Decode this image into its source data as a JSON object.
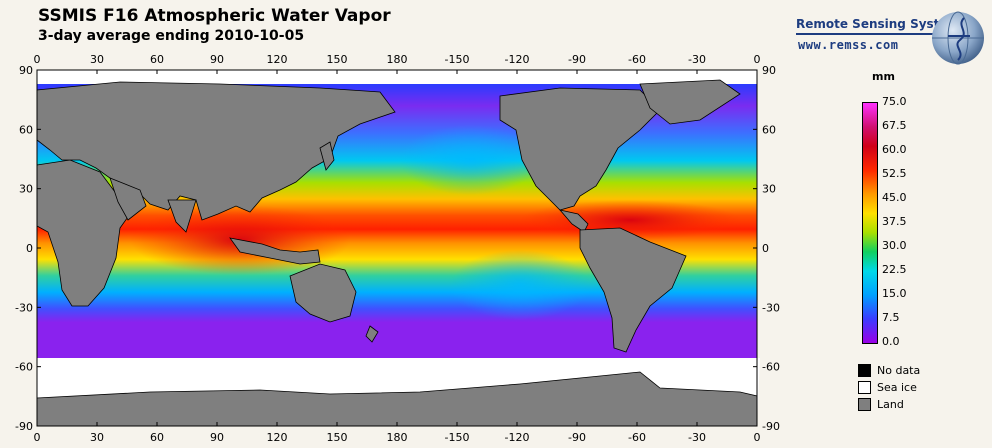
{
  "header": {
    "title": "SSMIS F16 Atmospheric Water Vapor",
    "subtitle": "3-day average ending 2010-10-05"
  },
  "branding": {
    "org": "Remote Sensing Systems",
    "url": "www.remss.com"
  },
  "axes": {
    "top_lon": [
      "0",
      "30",
      "60",
      "90",
      "120",
      "150",
      "180",
      "-150",
      "-120",
      "-90",
      "-60",
      "-30",
      "0"
    ],
    "bottom_lon": [
      "0",
      "30",
      "60",
      "90",
      "120",
      "150",
      "180",
      "-150",
      "-120",
      "-90",
      "-60",
      "-30",
      "0"
    ],
    "left_lat": [
      "90",
      "60",
      "30",
      "0",
      "-30",
      "-60",
      "-90"
    ],
    "right_lat": [
      "90",
      "60",
      "30",
      "0",
      "-30",
      "-60",
      "-90"
    ]
  },
  "colorbar": {
    "unit": "mm",
    "labels": [
      "75.0",
      "67.5",
      "60.0",
      "52.5",
      "45.0",
      "37.5",
      "30.0",
      "22.5",
      "15.0",
      "7.5",
      "0.0"
    ]
  },
  "legend": {
    "items": [
      {
        "label": "No data",
        "color": "#000000"
      },
      {
        "label": "Sea ice",
        "color": "#ffffff"
      },
      {
        "label": "Land",
        "color": "#7f7f7f"
      }
    ]
  },
  "colors": {
    "land": "#7f7f7f",
    "ice": "#ffffff",
    "deep_tropics": "#ff2800",
    "mid": "#ffe000",
    "cool": "#00d8e8",
    "polar": "#7a2cf0"
  }
}
